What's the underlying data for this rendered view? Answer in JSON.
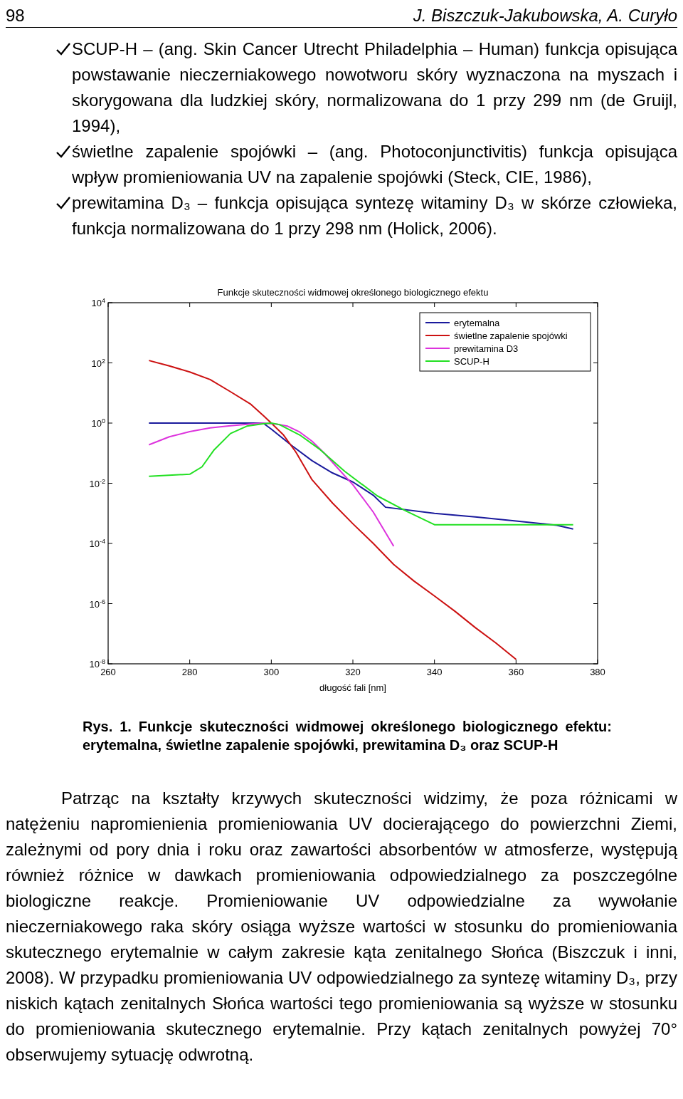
{
  "chart_data": {
    "type": "line",
    "title": "Funkcje skuteczności widmowej określonego biologicznego efektu",
    "xlabel": "długość fali [nm]",
    "xlim": [
      260,
      380
    ],
    "xticks": [
      260,
      280,
      300,
      320,
      340,
      360,
      380
    ],
    "ylim": [
      1e-08,
      10000
    ],
    "log": "y",
    "yticks": [
      {
        "value": 10000,
        "label": "10$^{4}$"
      },
      {
        "value": 100,
        "label": "10$^{2}$"
      },
      {
        "value": 1,
        "label": "10$^{0}$"
      },
      {
        "value": 0.01,
        "label": "10$^{-2}$"
      },
      {
        "value": 0.0001,
        "label": "10$^{-4}$"
      },
      {
        "value": 1e-06,
        "label": "10$^{-6}$"
      },
      {
        "value": 1e-08,
        "label": "10$^{-8}$"
      }
    ],
    "legend": "top right",
    "line_style": "solid",
    "series": [
      {
        "name": "erytemalna",
        "color": "#1a1a9c",
        "x": [
          270,
          298,
          300,
          305,
          310,
          315,
          320,
          325,
          328,
          340,
          350,
          360,
          370,
          374
        ],
        "values": [
          1,
          1,
          0.63,
          0.18,
          0.056,
          0.022,
          0.011,
          0.004,
          0.0016,
          0.001,
          0.00076,
          0.00056,
          0.0004,
          0.0003
        ]
      },
      {
        "name": "świetlne zapalenie spojówki",
        "color": "#cc1111",
        "x": [
          270,
          275,
          280,
          285,
          290,
          295,
          298,
          300,
          303,
          306,
          310,
          315,
          320,
          325,
          330,
          335,
          340,
          345,
          350,
          355,
          360
        ],
        "values": [
          120,
          79,
          50,
          28,
          11,
          4.2,
          1.8,
          1,
          0.4,
          0.11,
          0.013,
          0.0022,
          0.00045,
          0.0001,
          2e-05,
          5.6e-06,
          1.8e-06,
          5.6e-07,
          1.6e-07,
          5e-08,
          1.4e-08
        ]
      },
      {
        "name": "prewitamina D3",
        "color": "#dd33dd",
        "x": [
          270,
          275,
          280,
          285,
          290,
          295,
          298,
          301,
          304,
          307,
          310,
          313,
          316,
          320,
          325,
          330
        ],
        "values": [
          0.19,
          0.35,
          0.52,
          0.69,
          0.81,
          0.93,
          1,
          0.93,
          0.79,
          0.5,
          0.25,
          0.1,
          0.035,
          0.0089,
          0.0011,
          8.1e-05
        ]
      },
      {
        "name": "SCUP-H",
        "color": "#22e022",
        "x": [
          270,
          280,
          283,
          286,
          290,
          294,
          298,
          300,
          302,
          307,
          312,
          318,
          326,
          333,
          340,
          374
        ],
        "values": [
          0.017,
          0.02,
          0.035,
          0.13,
          0.45,
          0.79,
          0.95,
          1,
          0.89,
          0.4,
          0.13,
          0.025,
          0.0038,
          0.0012,
          0.00042,
          0.00042
        ]
      }
    ],
    "annotations": [
      "98",
      "J. Biszczuk-Jakubowska, A. Curyło",
      "SCUP-H – (ang. Skin Cancer Utrecht Philadelphia – Human) funkcja opisująca powstawanie nieczerniakowego nowotworu skóry wyznaczona na myszach i skorygowana dla ludzkiej skóry, normalizowana do 1 przy 299 nm (de Gruijl, 1994),",
      "świetlne zapalenie spojówki – (ang. Photoconjunctivitis) funkcja opisująca wpływ promieniowania UV na zapalenie spojówki (Steck, CIE, 1986),",
      "prewitamina D₃ – funkcja opisująca syntezę witaminy D₃ w skórze człowieka, funkcja normalizowana do 1 przy 298 nm (Holick, 2006).",
      "Rys. 1. Funkcje skuteczności widmowej określonego biologicznego efektu: erytemalna, świetlne zapalenie spojówki, prewitamina D₃ oraz SCUP-H",
      "Patrząc na kształty krzywych skuteczności widzimy, że poza różnicami w natężeniu napromienienia promieniowania UV docierającego do powierzchni Ziemi, zależnymi od pory dnia i roku oraz zawartości absorbentów w atmosferze, występują również różnice w dawkach promieniowania odpowiedzialnego za poszczególne biologiczne reakcje. Promieniowanie UV odpowiedzialne za wywołanie nieczerniakowego raka skóry osiąga wyższe wartości w stosunku do promieniowania skutecznego erytemalnie w całym zakresie kąta zenitalnego Słońca (Biszczuk i inni, 2008). W przypadku promieniowania UV odpowiedzialnego za syntezę witaminy D₃, przy niskich kątach zenitalnych Słońca wartości tego promieniowania są wyższe w stosunku do promieniowania skutecznego erytemalnie. Przy kątach zenitalnych powyżej 70° obserwujemy sytuację odwrotną."
    ]
  }
}
